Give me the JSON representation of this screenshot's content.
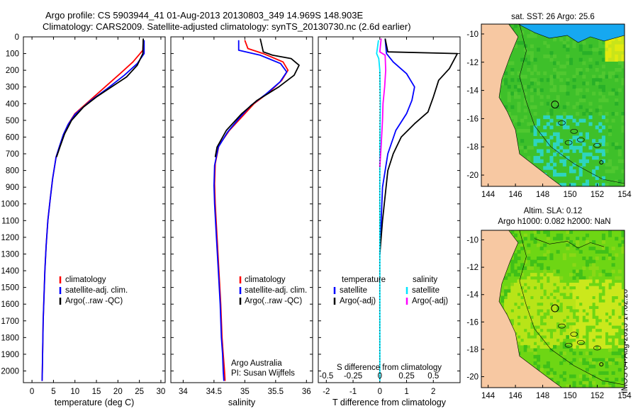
{
  "header": {
    "line1": "Argo profile: CS 5903944_41 01-Aug-2013 20130803_349 14.969S 148.903E",
    "line2": "Climatology: CARS2009. Satellite-adjusted climatology: synTS_20130730.nc (2.6d earlier)"
  },
  "stamp": "IMOS 04-Aug-2013 17:02:26",
  "colors": {
    "climatology": "#ff0000",
    "satellite": "#0000ff",
    "argo": "#000000",
    "sal_satellite": "#00e5ff",
    "sal_argo": "#ff00ff",
    "land": "#f7c8a2"
  },
  "chart_data": [
    {
      "type": "line",
      "name": "temperature-profile",
      "xlabel": "temperature (deg C)",
      "xlim": [
        -2,
        31
      ],
      "ylim": [
        2070,
        0
      ],
      "xticks": [
        0,
        5,
        10,
        15,
        20,
        25,
        30
      ],
      "yticks": [
        0,
        100,
        200,
        300,
        400,
        500,
        600,
        700,
        800,
        900,
        1000,
        1100,
        1200,
        1300,
        1400,
        1500,
        1600,
        1700,
        1800,
        1900,
        2000
      ],
      "legend": [
        "climatology",
        "satellite-adj. clim.",
        "Argo(..raw -QC)"
      ],
      "series": [
        {
          "name": "climatology",
          "color": "#ff0000",
          "x": [
            25.9,
            25.8,
            23.5,
            20.5,
            17.0,
            13.5,
            10.0,
            8.5,
            7.4,
            6.5,
            5.6,
            4.8,
            4.2,
            3.7,
            3.3,
            3.0,
            2.8,
            2.6,
            2.5,
            2.4,
            2.35
          ],
          "depth": [
            20,
            80,
            150,
            220,
            300,
            380,
            460,
            520,
            580,
            650,
            720,
            850,
            980,
            1100,
            1250,
            1400,
            1550,
            1700,
            1850,
            2000,
            2060
          ]
        },
        {
          "name": "satellite-adj. clim.",
          "color": "#0000ff",
          "x": [
            26.1,
            26.1,
            24.5,
            21.5,
            17.5,
            13.5,
            10.0,
            8.4,
            7.3,
            6.4,
            5.6,
            4.8,
            4.2,
            3.7,
            3.3,
            3.0,
            2.8,
            2.6,
            2.5,
            2.4,
            2.35
          ],
          "depth": [
            20,
            100,
            160,
            230,
            310,
            385,
            465,
            525,
            585,
            655,
            720,
            850,
            980,
            1100,
            1250,
            1400,
            1550,
            1700,
            1850,
            2000,
            2060
          ]
        },
        {
          "name": "Argo(..raw -QC)",
          "color": "#000000",
          "x": [
            25.9,
            25.8,
            24.5,
            22.0,
            18.5,
            15.0,
            12.0,
            9.2,
            7.6,
            6.5,
            5.7
          ],
          "depth": [
            10,
            100,
            170,
            240,
            300,
            360,
            420,
            500,
            580,
            660,
            720
          ]
        }
      ]
    },
    {
      "type": "line",
      "name": "salinity-profile",
      "xlabel": "salinity",
      "xlim": [
        33.8,
        36.1
      ],
      "ylim": [
        2070,
        0
      ],
      "xticks": [
        34,
        34.5,
        35,
        35.5,
        36
      ],
      "legend": [
        "climatology",
        "satellite-adj. clim.",
        "Argo(..raw -QC)"
      ],
      "annotation": [
        "Argo Australia",
        "PI: Susan Wijffels"
      ],
      "series": [
        {
          "name": "climatology",
          "color": "#ff0000",
          "x": [
            35.0,
            35.05,
            35.3,
            35.62,
            35.7,
            35.6,
            35.4,
            35.15,
            34.95,
            34.75,
            34.58,
            34.52,
            34.51,
            34.52,
            34.55,
            34.58,
            34.61,
            34.63,
            34.65,
            34.67,
            34.68
          ],
          "depth": [
            20,
            70,
            100,
            150,
            200,
            260,
            330,
            400,
            480,
            560,
            650,
            760,
            880,
            1000,
            1200,
            1400,
            1600,
            1800,
            1900,
            2000,
            2060
          ]
        },
        {
          "name": "satellite-adj. clim.",
          "color": "#0000ff",
          "x": [
            34.9,
            34.9,
            35.25,
            35.58,
            35.68,
            35.57,
            35.35,
            35.1,
            34.9,
            34.72,
            34.57,
            34.51,
            34.5,
            34.51,
            34.54,
            34.57,
            34.6,
            34.62,
            34.64,
            34.65,
            34.66
          ],
          "depth": [
            20,
            80,
            110,
            160,
            210,
            270,
            340,
            410,
            490,
            570,
            660,
            770,
            890,
            1000,
            1200,
            1400,
            1600,
            1800,
            1900,
            2000,
            2060
          ]
        },
        {
          "name": "Argo(..raw -QC)",
          "color": "#000000",
          "x": [
            35.25,
            35.3,
            35.45,
            35.75,
            35.88,
            35.8,
            35.55,
            35.2,
            34.95,
            34.7,
            34.55,
            34.52
          ],
          "depth": [
            10,
            90,
            110,
            130,
            170,
            230,
            300,
            380,
            460,
            560,
            660,
            720
          ]
        }
      ]
    },
    {
      "type": "line",
      "name": "difference-profile",
      "xlabel": "T difference from climatology",
      "x2label": "S difference from climatology",
      "xlim": [
        -2.3,
        3
      ],
      "ylim": [
        2070,
        0
      ],
      "xticks": [
        -2,
        -1,
        0,
        1,
        2
      ],
      "x2ticks": [
        -0.5,
        -0.25,
        0,
        0.25,
        0.5
      ],
      "x2tick_labels": [
        "-0.5",
        "-0.25",
        "0",
        "0.25",
        "0.5"
      ],
      "legend": [
        "temperature",
        "satellite",
        "Argo(-adj)",
        "salinity",
        "satellite",
        "Argo(-adj)"
      ],
      "series": [
        {
          "name": "T satellite",
          "color": "#0000ff",
          "x": [
            0.2,
            0.25,
            0.5,
            1.0,
            1.3,
            1.2,
            1.0,
            0.6,
            0.3,
            0.1,
            0.05,
            0.0
          ],
          "depth": [
            10,
            100,
            150,
            220,
            300,
            380,
            460,
            560,
            700,
            900,
            1100,
            1300
          ]
        },
        {
          "name": "T Argo(-adj)",
          "color": "#000000",
          "x": [
            0.2,
            0.3,
            2.9,
            2.6,
            2.2,
            2.0,
            1.8,
            1.3,
            0.8,
            0.5,
            0.3,
            0.1,
            0.0
          ],
          "depth": [
            10,
            90,
            100,
            190,
            260,
            360,
            450,
            520,
            600,
            700,
            800,
            1100,
            1300
          ]
        },
        {
          "name": "S satellite",
          "color": "#00e5ff",
          "x": [
            -0.05,
            -0.12,
            -0.04,
            0.0,
            0.02,
            0.0,
            0.0,
            0.0,
            0.0,
            0.0
          ],
          "depth": [
            20,
            100,
            130,
            200,
            400,
            700,
            1000,
            1400,
            1800,
            2060
          ]
        },
        {
          "name": "S Argo(-adj)",
          "color": "#ff00ff",
          "x": [
            0.05,
            0.0,
            0.2,
            0.22,
            0.18,
            0.12,
            0.1,
            0.05,
            0.0
          ],
          "depth": [
            10,
            90,
            110,
            200,
            300,
            400,
            500,
            650,
            780
          ]
        }
      ]
    },
    {
      "type": "heatmap",
      "name": "sst-map",
      "title": "sat. SST: 26  Argo: 25.6",
      "xlim": [
        143.5,
        154
      ],
      "ylim": [
        -20.8,
        -9.3
      ],
      "xticks": [
        144,
        146,
        148,
        150,
        152,
        154
      ],
      "yticks": [
        -10,
        -12,
        -14,
        -16,
        -18,
        -20
      ],
      "argo_position": [
        148.9,
        -15.0
      ]
    },
    {
      "type": "heatmap",
      "name": "sla-map",
      "title": [
        "Altim. SLA: 0.12",
        "Argo h1000: 0.082 h2000: NaN"
      ],
      "xlim": [
        143.5,
        154
      ],
      "ylim": [
        -20.8,
        -9.3
      ],
      "xticks": [
        144,
        146,
        148,
        150,
        152,
        154
      ],
      "yticks": [
        -10,
        -12,
        -14,
        -16,
        -18,
        -20
      ],
      "argo_position": [
        148.9,
        -15.0
      ]
    }
  ]
}
